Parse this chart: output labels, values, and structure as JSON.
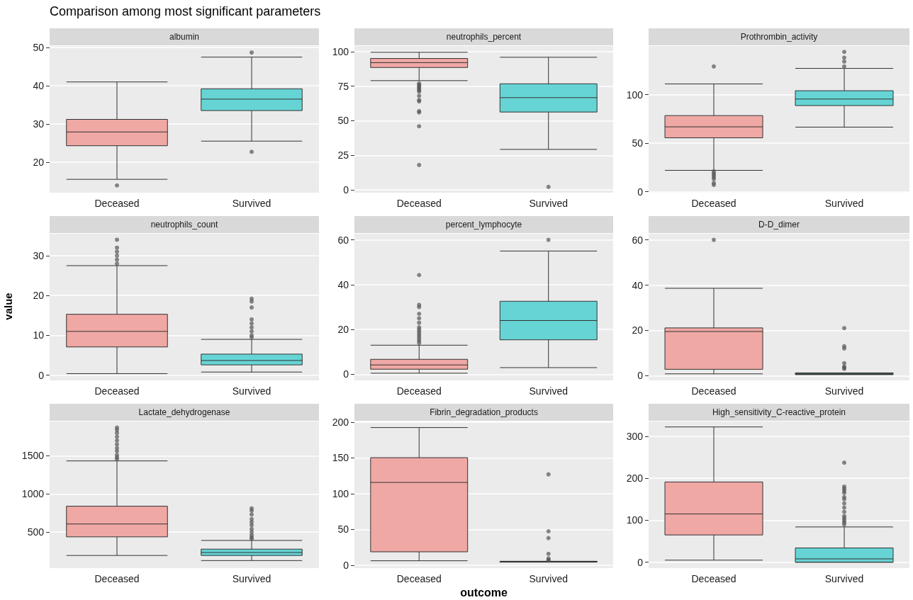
{
  "chart_data": [
    {
      "type": "box",
      "title": "Comparison among most significant parameters",
      "subtitle": "albumin",
      "categories": [
        "Deceased",
        "Survived"
      ],
      "colors": [
        "#f0a8a4",
        "#66d4d5"
      ],
      "ylim": [
        12,
        50.4
      ],
      "yticks": [
        20,
        30,
        40,
        50
      ],
      "grid": true,
      "boxes": [
        {
          "low": 15.5,
          "q1": 24.3,
          "median": 27.9,
          "q3": 31.2,
          "high": 41,
          "outliers": [
            13.9
          ]
        },
        {
          "low": 25.5,
          "q1": 33.5,
          "median": 36.5,
          "q3": 39.2,
          "high": 47.5,
          "outliers": [
            48.7,
            22.7
          ]
        }
      ]
    },
    {
      "type": "box",
      "subtitle": "neutrophils_percent",
      "categories": [
        "Deceased",
        "Survived"
      ],
      "colors": [
        "#f0a8a4",
        "#66d4d5"
      ],
      "ylim": [
        -2,
        104
      ],
      "yticks": [
        0,
        25,
        50,
        75,
        100
      ],
      "grid": true,
      "boxes": [
        {
          "low": 79,
          "q1": 88.5,
          "median": 92,
          "q3": 95,
          "high": 99.5,
          "outliers": [
            77,
            76,
            75,
            74,
            73,
            72,
            71,
            68,
            65,
            64,
            57,
            56,
            46,
            18
          ]
        },
        {
          "low": 29.3,
          "q1": 56.3,
          "median": 66.7,
          "q3": 76.7,
          "high": 95.9,
          "outliers": [
            2.2
          ]
        }
      ]
    },
    {
      "type": "box",
      "subtitle": "Prothrombin_activity",
      "categories": [
        "Deceased",
        "Survived"
      ],
      "colors": [
        "#f0a8a4",
        "#66d4d5"
      ],
      "ylim": [
        -1,
        150
      ],
      "yticks": [
        0,
        50,
        100
      ],
      "grid": true,
      "boxes": [
        {
          "low": 22,
          "q1": 55.5,
          "median": 66.8,
          "q3": 78.4,
          "high": 111,
          "outliers": [
            129,
            21,
            19,
            17,
            15,
            13,
            9,
            7
          ]
        },
        {
          "low": 66.5,
          "q1": 88.7,
          "median": 95.4,
          "q3": 104,
          "high": 127,
          "outliers": [
            129,
            134,
            138,
            144
          ]
        }
      ]
    },
    {
      "type": "box",
      "subtitle": "neutrophils_count",
      "ylabel": "value",
      "categories": [
        "Deceased",
        "Survived"
      ],
      "colors": [
        "#f0a8a4",
        "#66d4d5"
      ],
      "ylim": [
        -1.3,
        35.5
      ],
      "yticks": [
        0,
        10,
        20,
        30
      ],
      "grid": true,
      "boxes": [
        {
          "low": 0.4,
          "q1": 7.1,
          "median": 11,
          "q3": 15.3,
          "high": 27.5,
          "outliers": [
            28,
            29,
            30,
            31,
            32,
            34
          ]
        },
        {
          "low": 0.8,
          "q1": 2.6,
          "median": 3.7,
          "q3": 5.3,
          "high": 9,
          "outliers": [
            9.5,
            10,
            11,
            12,
            13,
            14,
            17,
            18.5,
            19.2
          ]
        }
      ]
    },
    {
      "type": "box",
      "subtitle": "percent_lymphocyte",
      "categories": [
        "Deceased",
        "Survived"
      ],
      "colors": [
        "#f0a8a4",
        "#66d4d5"
      ],
      "ylim": [
        -2.7,
        62.7
      ],
      "yticks": [
        0,
        20,
        40,
        60
      ],
      "grid": true,
      "boxes": [
        {
          "low": 0.5,
          "q1": 2.3,
          "median": 4.2,
          "q3": 6.7,
          "high": 13,
          "outliers": [
            14,
            15,
            16,
            17,
            18,
            19,
            20,
            21,
            23,
            25,
            27,
            30,
            31,
            44.3
          ]
        },
        {
          "low": 3,
          "q1": 15.4,
          "median": 24,
          "q3": 32.6,
          "high": 55,
          "outliers": [
            60
          ]
        }
      ]
    },
    {
      "type": "box",
      "subtitle": "D-D_dimer",
      "categories": [
        "Deceased",
        "Survived"
      ],
      "colors": [
        "#f0a8a4",
        "#66d4d5"
      ],
      "ylim": [
        -2.1,
        62.7
      ],
      "yticks": [
        0,
        20,
        40,
        60
      ],
      "grid": true,
      "boxes": [
        {
          "low": 0.8,
          "q1": 2.8,
          "median": 19.5,
          "q3": 21.1,
          "high": 38.6,
          "outliers": [
            60
          ]
        },
        {
          "low": 0.5,
          "q1": 0.5,
          "median": 0.8,
          "q3": 1.2,
          "high": 1.2,
          "outliers": [
            3,
            3.5,
            4,
            5.5,
            12,
            13,
            21
          ]
        }
      ]
    },
    {
      "type": "box",
      "subtitle": "Lactate_dehydrogenase",
      "categories": [
        "Deceased",
        "Survived"
      ],
      "colors": [
        "#f0a8a4",
        "#66d4d5"
      ],
      "ylim": [
        27,
        1950
      ],
      "yticks": [
        500,
        1000,
        1500
      ],
      "grid": true,
      "boxes": [
        {
          "low": 193,
          "q1": 437,
          "median": 606,
          "q3": 839,
          "high": 1433,
          "outliers": [
            1455,
            1480,
            1510,
            1560,
            1600,
            1650,
            1700,
            1750,
            1800,
            1840,
            1870
          ]
        },
        {
          "low": 126,
          "q1": 193,
          "median": 232,
          "q3": 276,
          "high": 390,
          "outliers": [
            410,
            430,
            460,
            500,
            540,
            590,
            630,
            670,
            730,
            780,
            810
          ]
        }
      ]
    },
    {
      "type": "box",
      "subtitle": "Fibrin_degradation_products",
      "xlabel": "outcome",
      "categories": [
        "Deceased",
        "Survived"
      ],
      "colors": [
        "#f0a8a4",
        "#66d4d5"
      ],
      "ylim": [
        -4,
        201
      ],
      "yticks": [
        0,
        50,
        100,
        150,
        200
      ],
      "grid": true,
      "boxes": [
        {
          "low": 6.3,
          "q1": 18.8,
          "median": 115.8,
          "q3": 150.4,
          "high": 192.5
        },
        {
          "low": 4.5,
          "q1": 4.5,
          "median": 5,
          "q3": 5.5,
          "high": 5.5,
          "outliers": [
            127,
            47.5,
            38,
            16,
            9.6,
            7.5,
            6.5
          ]
        }
      ]
    },
    {
      "type": "box",
      "subtitle": "High_sensitivity_C-reactive_protein",
      "categories": [
        "Deceased",
        "Survived"
      ],
      "colors": [
        "#f0a8a4",
        "#66d4d5"
      ],
      "ylim": [
        -14,
        335
      ],
      "yticks": [
        0,
        100,
        200,
        300
      ],
      "grid": true,
      "boxes": [
        {
          "low": 5,
          "q1": 65,
          "median": 115,
          "q3": 191,
          "high": 322
        },
        {
          "low": 0,
          "q1": 0,
          "median": 8,
          "q3": 34,
          "high": 84,
          "outliers": [
            90,
            95,
            100,
            105,
            110,
            120,
            130,
            140,
            150,
            155,
            165,
            170,
            175,
            180,
            237
          ]
        }
      ]
    }
  ]
}
